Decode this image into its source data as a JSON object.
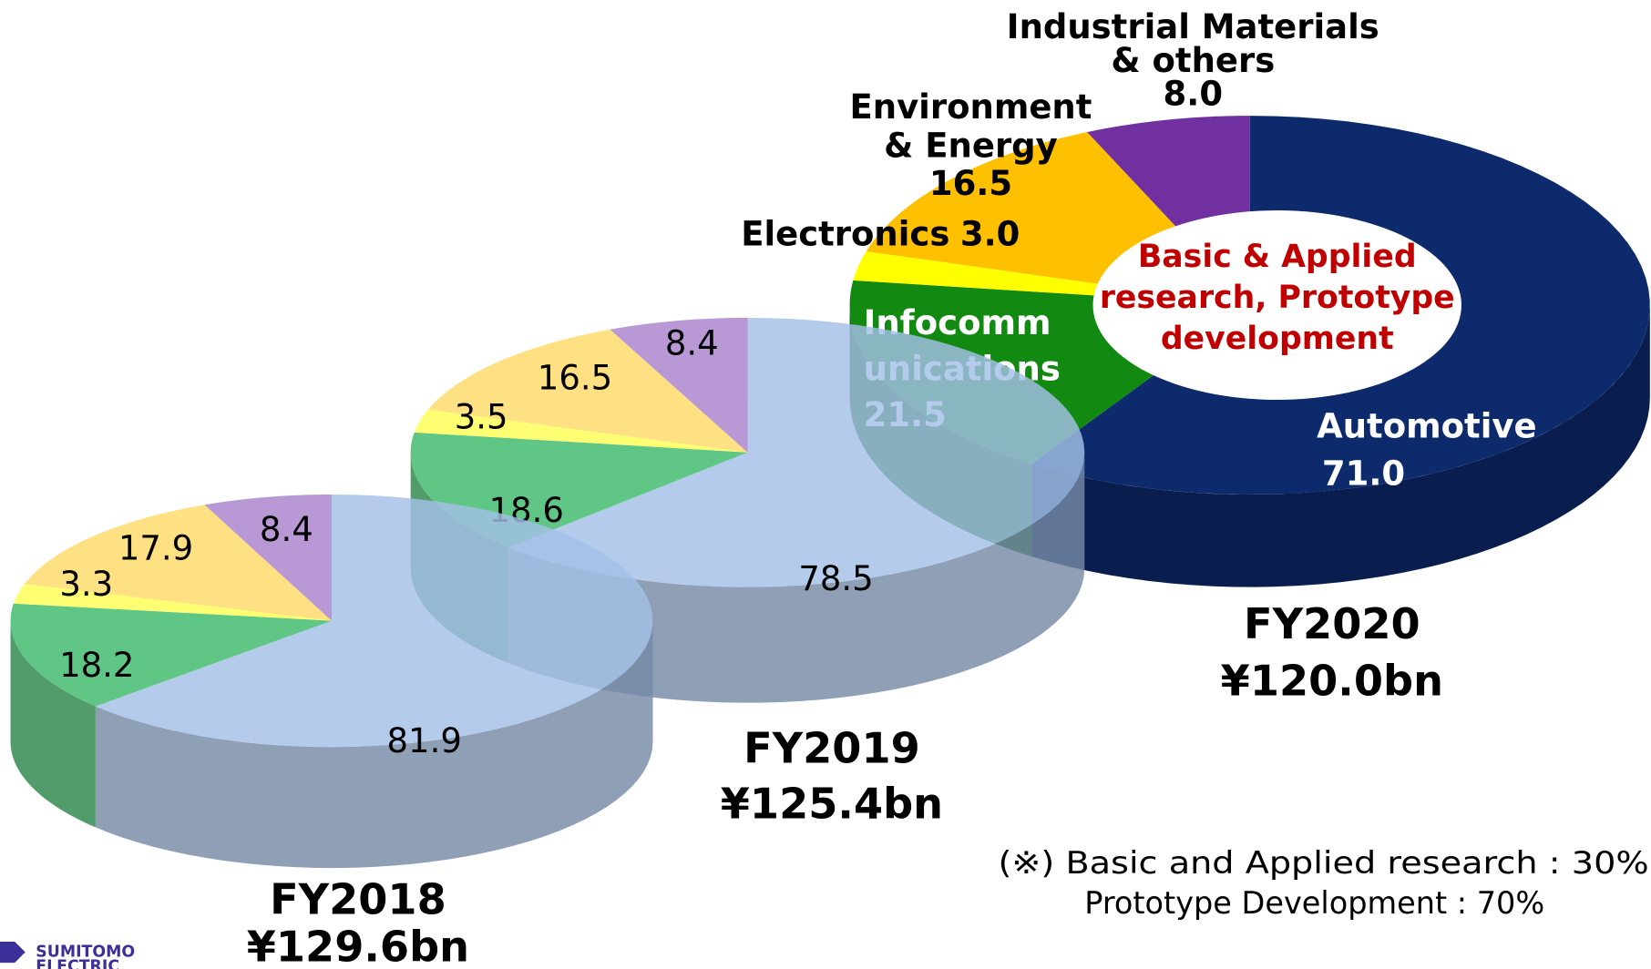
{
  "chart_data": [
    {
      "type": "pie",
      "title": "FY2018",
      "subtitle": "¥129.6bn",
      "values": [
        81.9,
        18.2,
        3.3,
        17.9,
        8.4
      ],
      "colors": [
        "#a3bfe6",
        "#3dba6a",
        "#ffff55",
        "#ffd966",
        "#a882cc"
      ]
    },
    {
      "type": "pie",
      "title": "FY2019",
      "subtitle": "¥125.4bn",
      "values": [
        78.5,
        18.6,
        3.5,
        16.5,
        8.4
      ],
      "colors": [
        "#a3bfe6",
        "#3dba6a",
        "#ffff55",
        "#ffd966",
        "#a882cc"
      ]
    },
    {
      "type": "donut",
      "title": "FY2020",
      "subtitle": "¥120.0bn",
      "categories": [
        "Automotive",
        "Infocomm\nunications",
        "Electronics",
        "Environment\n& Energy",
        "Industrial Materials\n& others"
      ],
      "values": [
        71.0,
        21.5,
        3.0,
        16.5,
        8.0
      ],
      "value_labels": [
        "71.0",
        "21.5",
        "3.0",
        "16.5",
        "8.0"
      ],
      "colors": [
        "#0c2a6c",
        "#128a12",
        "#ffff00",
        "#ffc000",
        "#7030a0"
      ],
      "annotation": "Basic & Applied\nresearch, Prototype\ndevelopment"
    }
  ],
  "footnote": [
    "(※) Basic and Applied research : 30%",
    "Prototype Development : 70%"
  ],
  "logo": "SUMITOMO\nELECTRIC"
}
